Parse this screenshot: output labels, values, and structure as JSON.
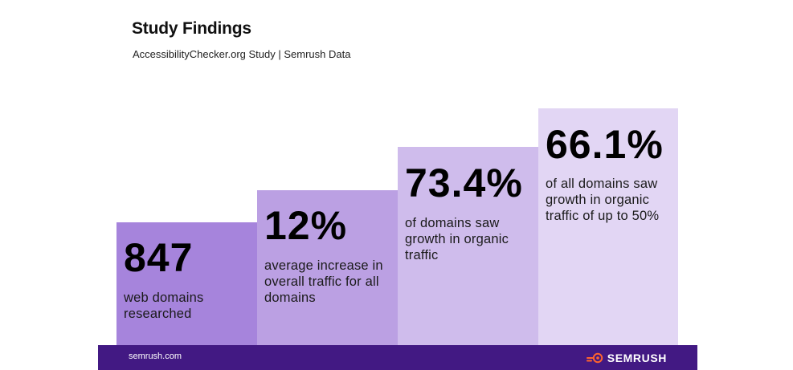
{
  "header": {
    "title": "Study Findings",
    "subtitle": "AccessibilityChecker.org Study | Semrush Data"
  },
  "cards": [
    {
      "value": "847",
      "description": "web domains researched",
      "color": "#a684dc"
    },
    {
      "value": "12%",
      "description": "average increase in overall traffic for all domains",
      "color": "#bba0e3"
    },
    {
      "value": "73.4%",
      "description": "of domains saw growth in organic traffic",
      "color": "#cfbcec"
    },
    {
      "value": "66.1%",
      "description": "of all domains saw growth in organic traffic of up to 50%",
      "color": "#e2d6f4"
    }
  ],
  "footer": {
    "url": "semrush.com",
    "brand": "SEMRUSH",
    "brand_icon": "semrush-logo-icon",
    "background": "#421983",
    "accent": "#ff642d"
  }
}
